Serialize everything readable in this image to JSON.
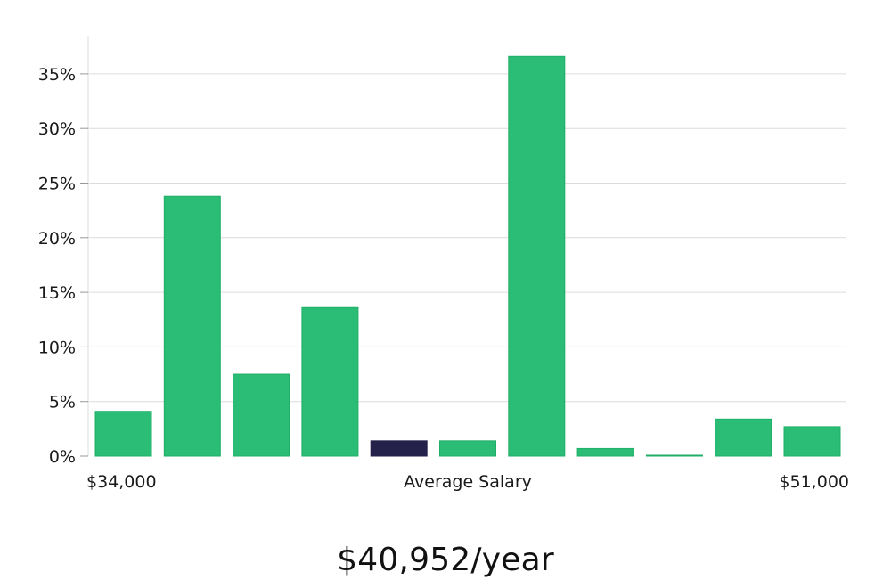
{
  "chart_data": {
    "type": "bar",
    "title": "",
    "xlabel": "Average Salary",
    "ylabel": "",
    "x_range_labels": {
      "min": "$34,000",
      "max": "$51,000"
    },
    "y_ticks": [
      "0%",
      "5%",
      "10%",
      "15%",
      "20%",
      "25%",
      "30%",
      "35%"
    ],
    "ylim": [
      0,
      38.5
    ],
    "grid": true,
    "values": [
      4.1,
      23.8,
      7.5,
      13.6,
      1.4,
      1.4,
      36.6,
      0.7,
      0.05,
      3.4,
      2.7
    ],
    "highlight_index": 4,
    "colors": {
      "bar": "#2bbd76",
      "bar_edge": "#1fae67",
      "highlight": "#24214a"
    }
  },
  "summary": {
    "salary": "$40,952/year"
  }
}
